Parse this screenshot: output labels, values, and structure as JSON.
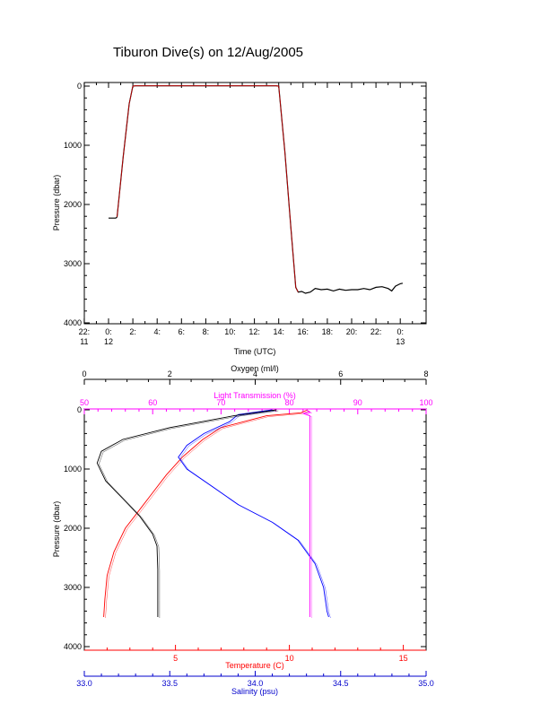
{
  "title": "Tiburon Dive(s) on 12/Aug/2005",
  "colors": {
    "axis": "#000000",
    "temperature": "#ff0000",
    "salinity": "#0000cc",
    "oxygen": "#000000",
    "transmission": "#ff00ff",
    "profile_blue": "#0000ff",
    "time_trace": "#000000",
    "time_trace_descent": "#cc0000"
  },
  "chart_data": [
    {
      "type": "line",
      "title": "Tiburon Dive(s) on 12/Aug/2005",
      "xlabel": "Time (UTC)",
      "ylabel": "Pressure (dbar)",
      "ylim": [
        4000,
        0
      ],
      "x_ticks": [
        {
          "label": "22:",
          "sublabel": "11",
          "hour": -2
        },
        {
          "label": "0:",
          "sublabel": "12",
          "hour": 0
        },
        {
          "label": "2:",
          "sublabel": "",
          "hour": 2
        },
        {
          "label": "4:",
          "sublabel": "",
          "hour": 4
        },
        {
          "label": "6:",
          "sublabel": "",
          "hour": 6
        },
        {
          "label": "8:",
          "sublabel": "",
          "hour": 8
        },
        {
          "label": "10:",
          "sublabel": "",
          "hour": 10
        },
        {
          "label": "12:",
          "sublabel": "",
          "hour": 12
        },
        {
          "label": "14:",
          "sublabel": "",
          "hour": 14
        },
        {
          "label": "16:",
          "sublabel": "",
          "hour": 16
        },
        {
          "label": "18:",
          "sublabel": "",
          "hour": 18
        },
        {
          "label": "20:",
          "sublabel": "",
          "hour": 20
        },
        {
          "label": "22:",
          "sublabel": "",
          "hour": 22
        },
        {
          "label": "0:",
          "sublabel": "13",
          "hour": 24
        }
      ],
      "y_ticks": [
        "0",
        "1000",
        "2000",
        "3000",
        "4000"
      ],
      "y_tick_values": [
        0,
        1000,
        2000,
        3000,
        4000
      ],
      "xlim_hours": [
        -2,
        26
      ],
      "series": [
        {
          "points": [
            [
              0.0,
              2230
            ],
            [
              0.3,
              2230
            ],
            [
              0.6,
              2230
            ],
            [
              0.7,
              2210
            ],
            [
              1.2,
              1200
            ],
            [
              1.7,
              300
            ],
            [
              2.0,
              0
            ],
            [
              2.2,
              -5
            ],
            [
              4,
              -5
            ],
            [
              6,
              -5
            ],
            [
              8,
              -5
            ],
            [
              10,
              -5
            ],
            [
              12,
              -5
            ],
            [
              13.8,
              -5
            ],
            [
              14.0,
              0
            ],
            [
              14.5,
              1100
            ],
            [
              15.0,
              2400
            ],
            [
              15.4,
              3400
            ],
            [
              15.6,
              3480
            ],
            [
              15.9,
              3470
            ],
            [
              16.2,
              3500
            ],
            [
              16.6,
              3480
            ],
            [
              17.0,
              3420
            ],
            [
              17.5,
              3440
            ],
            [
              18.0,
              3430
            ],
            [
              18.5,
              3460
            ],
            [
              19.0,
              3430
            ],
            [
              19.5,
              3450
            ],
            [
              20.0,
              3440
            ],
            [
              20.5,
              3440
            ],
            [
              21.0,
              3420
            ],
            [
              21.5,
              3440
            ],
            [
              22.0,
              3400
            ],
            [
              22.5,
              3390
            ],
            [
              23.0,
              3420
            ],
            [
              23.3,
              3460
            ],
            [
              23.6,
              3380
            ],
            [
              24.0,
              3340
            ],
            [
              24.2,
              3330
            ]
          ]
        }
      ]
    },
    {
      "type": "line",
      "ylabel": "Pressure (dbar)",
      "ylim": [
        4000,
        0
      ],
      "y_ticks": [
        "0",
        "1000",
        "2000",
        "3000",
        "4000"
      ],
      "y_tick_values": [
        0,
        1000,
        2000,
        3000,
        4000
      ],
      "axes": {
        "oxygen": {
          "label": "Oxygen (ml/l)",
          "range": [
            0,
            8
          ],
          "ticks": [
            "0",
            "2",
            "4",
            "6",
            "8"
          ],
          "tick_values": [
            0,
            2,
            4,
            6,
            8
          ]
        },
        "transmission": {
          "label": "Light Transmission (%)",
          "range": [
            50,
            100
          ],
          "ticks": [
            "50",
            "60",
            "70",
            "80",
            "90",
            "100"
          ],
          "tick_values": [
            50,
            60,
            70,
            80,
            90,
            100
          ]
        },
        "temperature": {
          "label": "Temperature (C)",
          "range": [
            1,
            16
          ],
          "ticks": [
            "5",
            "10",
            "15"
          ],
          "tick_values": [
            5,
            10,
            15
          ]
        },
        "salinity": {
          "label": "Salinity (psu)",
          "range": [
            33.0,
            35.0
          ],
          "ticks": [
            "33.0",
            "33.5",
            "34.0",
            "34.5",
            "35.0"
          ],
          "tick_values": [
            33.0,
            33.5,
            34.0,
            34.5,
            35.0
          ]
        }
      },
      "series": [
        {
          "axis": "temperature",
          "points": [
            [
              10.8,
              0
            ],
            [
              10.5,
              50
            ],
            [
              9.0,
              100
            ],
            [
              8.0,
              200
            ],
            [
              7.0,
              300
            ],
            [
              6.2,
              500
            ],
            [
              5.3,
              800
            ],
            [
              4.6,
              1100
            ],
            [
              4.0,
              1400
            ],
            [
              3.4,
              1700
            ],
            [
              2.8,
              2000
            ],
            [
              2.3,
              2400
            ],
            [
              2.0,
              2800
            ],
            [
              1.9,
              3200
            ],
            [
              1.85,
              3500
            ]
          ]
        },
        {
          "axis": "salinity",
          "points": [
            [
              34.1,
              0
            ],
            [
              33.9,
              80
            ],
            [
              33.85,
              200
            ],
            [
              33.7,
              400
            ],
            [
              33.6,
              600
            ],
            [
              33.55,
              800
            ],
            [
              33.6,
              1000
            ],
            [
              33.75,
              1300
            ],
            [
              33.9,
              1600
            ],
            [
              34.1,
              1900
            ],
            [
              34.25,
              2200
            ],
            [
              34.35,
              2600
            ],
            [
              34.4,
              3000
            ],
            [
              34.42,
              3400
            ],
            [
              34.43,
              3500
            ]
          ]
        },
        {
          "axis": "oxygen",
          "points": [
            [
              4.5,
              0
            ],
            [
              3.5,
              100
            ],
            [
              2.0,
              300
            ],
            [
              0.9,
              500
            ],
            [
              0.4,
              700
            ],
            [
              0.3,
              900
            ],
            [
              0.5,
              1200
            ],
            [
              0.9,
              1500
            ],
            [
              1.3,
              1800
            ],
            [
              1.6,
              2100
            ],
            [
              1.7,
              2300
            ],
            [
              1.72,
              2700
            ],
            [
              1.72,
              3200
            ],
            [
              1.72,
              3500
            ]
          ]
        },
        {
          "axis": "transmission",
          "points": [
            [
              82.5,
              0
            ],
            [
              83.0,
              40
            ],
            [
              82.0,
              60
            ],
            [
              83.0,
              100
            ],
            [
              83.0,
              600
            ],
            [
              83.0,
              1500
            ],
            [
              83.0,
              2200
            ],
            [
              83.0,
              2800
            ],
            [
              83.0,
              3200
            ],
            [
              83.0,
              3500
            ]
          ]
        }
      ]
    }
  ]
}
